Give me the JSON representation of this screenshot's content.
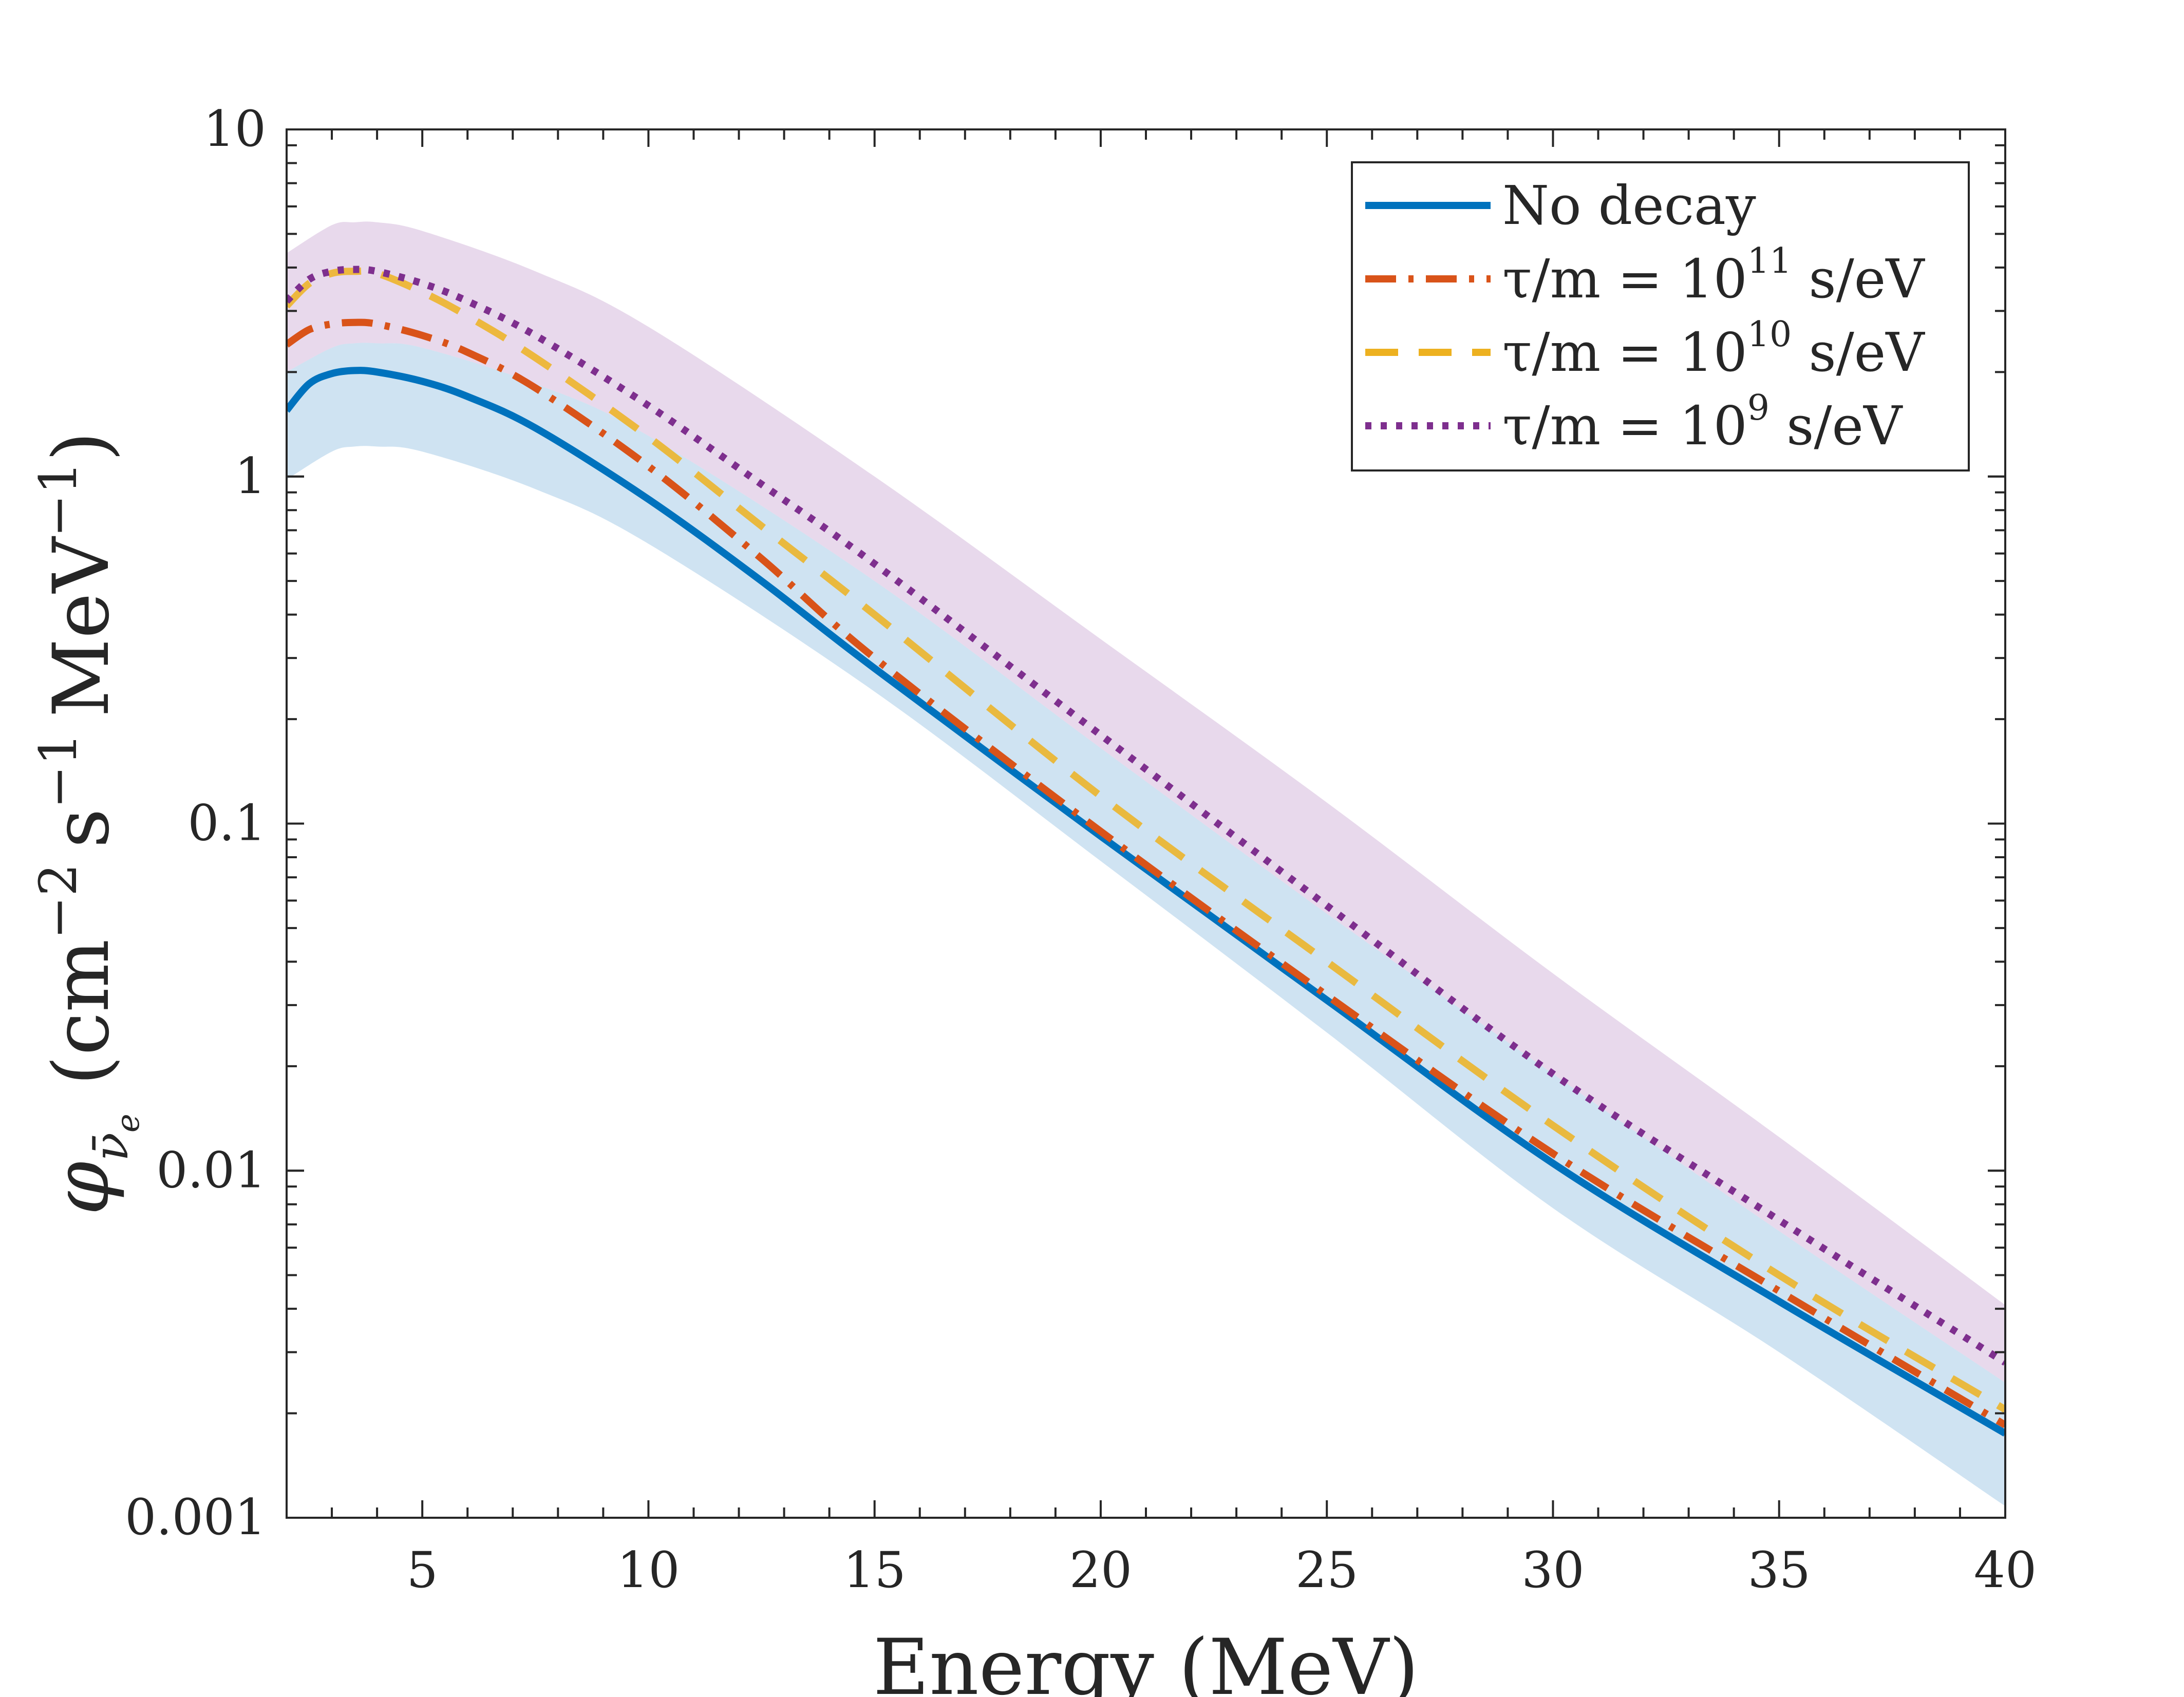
{
  "chart_data": {
    "type": "line",
    "title": "",
    "xlabel": "Energy (MeV)",
    "ylabel": {
      "symbol": "φ",
      "subscript": "ν̄",
      "subsubscript": "e",
      "units_open": "(cm",
      "units_exp1": "−2",
      "units_s": "s",
      "units_exp2": "−1",
      "units_mev": "MeV",
      "units_exp3": "−1",
      "units_close": ")"
    },
    "xlim": [
      2,
      40
    ],
    "ylim": [
      0.001,
      10
    ],
    "yscale": "log",
    "xticks": [
      5,
      10,
      15,
      20,
      25,
      30,
      35,
      40
    ],
    "xtick_labels": [
      "5",
      "10",
      "15",
      "20",
      "25",
      "30",
      "35",
      "40"
    ],
    "yticks": [
      0.001,
      0.01,
      0.1,
      1,
      10
    ],
    "ytick_labels": [
      "0.001",
      "0.01",
      "0.1",
      "1",
      "10"
    ],
    "grid": false,
    "legend_position": "top-right",
    "bands": [
      {
        "name": "No decay uncertainty",
        "color": "#cfe3f2",
        "x": [
          2,
          3,
          3.5,
          4,
          5,
          7.5,
          10,
          15,
          20,
          25,
          30,
          35,
          40
        ],
        "lower": [
          0.98,
          1.18,
          1.22,
          1.22,
          1.18,
          0.92,
          0.64,
          0.24,
          0.078,
          0.025,
          0.0078,
          0.003,
          0.00108
        ],
        "upper": [
          2.0,
          2.35,
          2.42,
          2.42,
          2.35,
          1.85,
          1.31,
          0.5,
          0.165,
          0.055,
          0.019,
          0.0067,
          0.00245
        ]
      },
      {
        "name": "tau/m = 10^9 uncertainty",
        "color": "#ccaad5",
        "opacity": 0.45,
        "x": [
          2,
          3,
          3.5,
          4,
          5,
          7.5,
          10,
          15,
          20,
          25,
          30,
          35,
          40
        ],
        "lower": [
          2.0,
          2.35,
          2.42,
          2.42,
          2.35,
          1.85,
          1.31,
          0.5,
          0.165,
          0.055,
          0.019,
          0.0067,
          0.00245
        ],
        "upper": [
          4.4,
          5.3,
          5.4,
          5.4,
          5.1,
          3.9,
          2.7,
          1.0,
          0.34,
          0.115,
          0.037,
          0.0125,
          0.0041
        ]
      }
    ],
    "series": [
      {
        "name": "No decay",
        "color": "#0072BD",
        "style": "solid",
        "x": [
          2,
          2.5,
          3,
          3.5,
          4,
          5,
          6,
          7.5,
          10,
          12.5,
          15,
          20,
          25,
          30,
          35,
          40
        ],
        "values": [
          1.55,
          1.85,
          1.98,
          2.02,
          2.0,
          1.88,
          1.7,
          1.38,
          0.86,
          0.5,
          0.28,
          0.092,
          0.031,
          0.0105,
          0.0042,
          0.00175
        ]
      },
      {
        "name": "τ/m = 10^11 s/eV",
        "color": "#D95319",
        "style": "dashdot",
        "x": [
          2,
          2.5,
          3,
          3.5,
          4,
          5,
          6,
          7.5,
          10,
          12.5,
          15,
          20,
          25,
          30,
          35,
          40
        ],
        "values": [
          2.4,
          2.65,
          2.75,
          2.78,
          2.75,
          2.55,
          2.28,
          1.8,
          1.07,
          0.58,
          0.3,
          0.095,
          0.032,
          0.0112,
          0.0045,
          0.00185
        ]
      },
      {
        "name": "τ/m = 10^10 s/eV",
        "color": "#EDB120",
        "style": "dash",
        "x": [
          2,
          2.5,
          3,
          3.5,
          4,
          5,
          6,
          7.5,
          10,
          12.5,
          15,
          20,
          25,
          30,
          35,
          40
        ],
        "values": [
          3.1,
          3.6,
          3.85,
          3.9,
          3.85,
          3.4,
          2.9,
          2.2,
          1.3,
          0.72,
          0.4,
          0.12,
          0.04,
          0.0135,
          0.005,
          0.00205
        ]
      },
      {
        "name": "τ/m = 10^9 s/eV",
        "color": "#7E2F8E",
        "style": "dot",
        "x": [
          2,
          2.5,
          3,
          3.5,
          4,
          5,
          6,
          7.5,
          10,
          12.5,
          15,
          20,
          25,
          30,
          35,
          40
        ],
        "values": [
          3.2,
          3.7,
          3.9,
          3.95,
          3.9,
          3.6,
          3.2,
          2.55,
          1.6,
          0.95,
          0.56,
          0.18,
          0.058,
          0.019,
          0.0072,
          0.0028
        ]
      }
    ],
    "legend": [
      {
        "prefix": "No decay",
        "power": "",
        "suffix": ""
      },
      {
        "prefix": "τ/m = 10",
        "power": "11",
        "suffix": " s/eV"
      },
      {
        "prefix": "τ/m = 10",
        "power": "10",
        "suffix": " s/eV"
      },
      {
        "prefix": "τ/m = 10",
        "power": "9",
        "suffix": " s/eV"
      }
    ]
  }
}
